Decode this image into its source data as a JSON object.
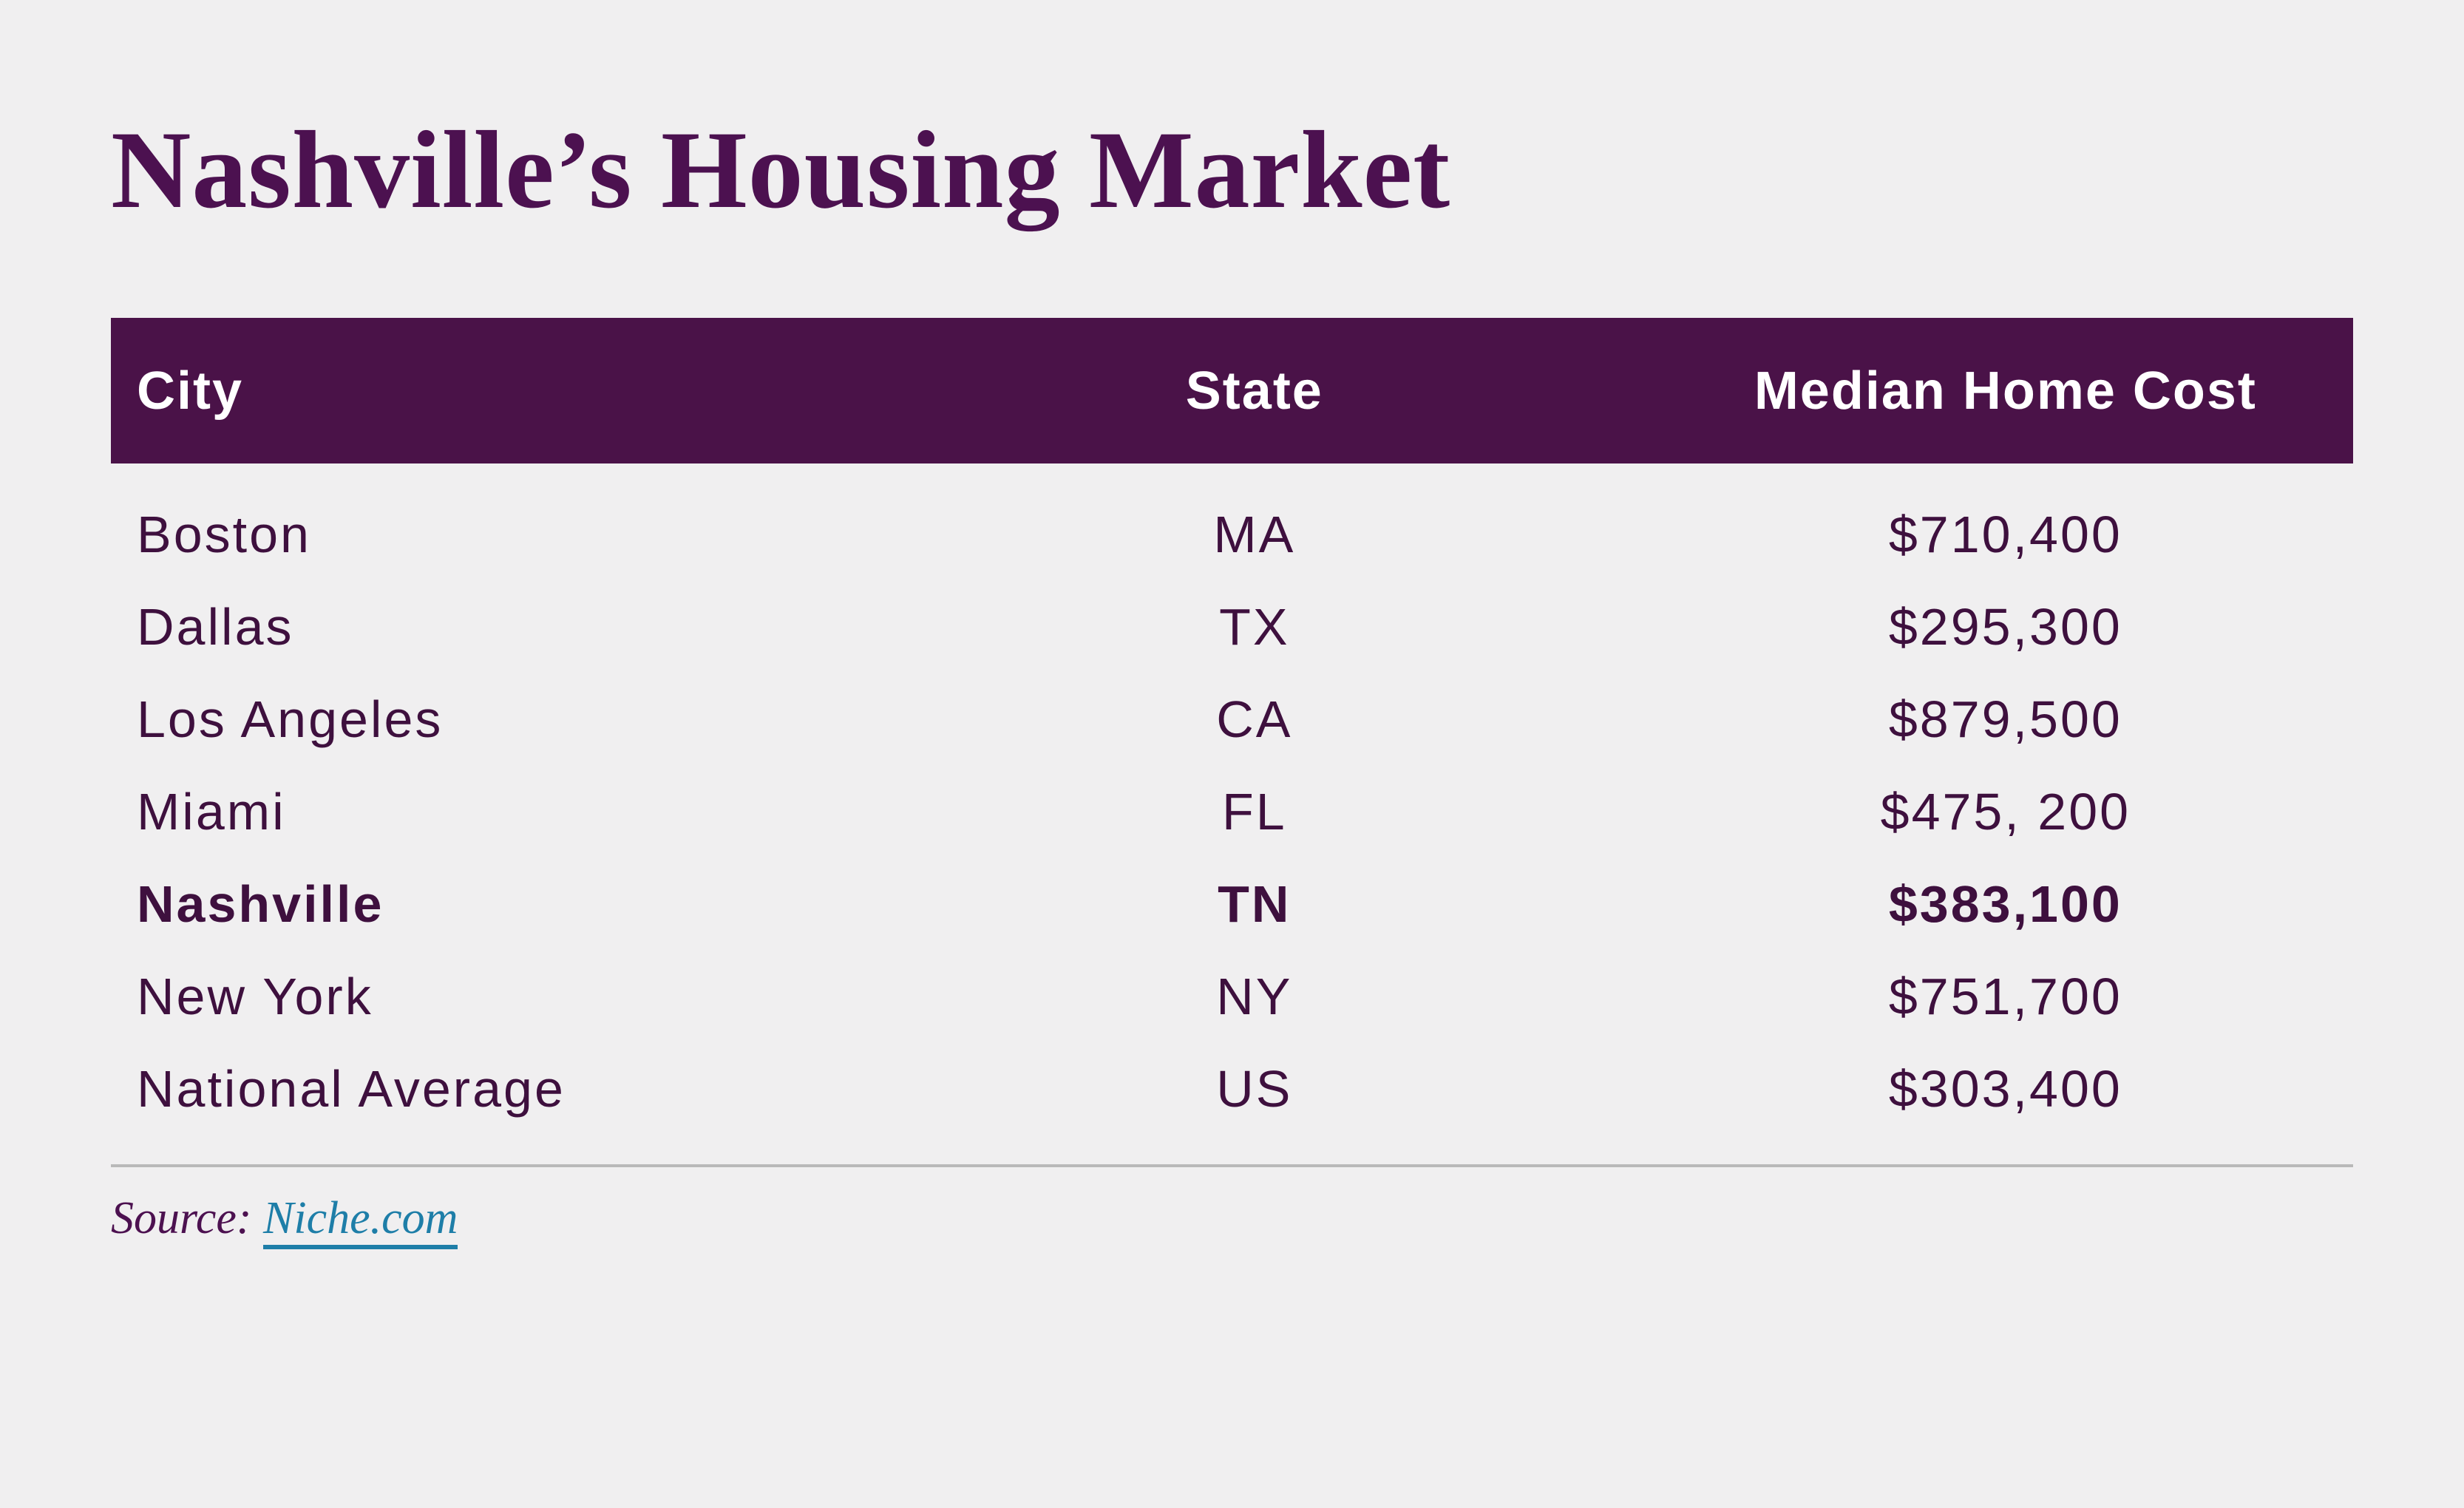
{
  "title": "Nashville’s Housing Market",
  "table": {
    "headers": {
      "city": "City",
      "state": "State",
      "cost": "Median Home Cost"
    },
    "rows": [
      {
        "city": "Boston",
        "state": "MA",
        "cost": "$710,400",
        "highlight": false
      },
      {
        "city": "Dallas",
        "state": "TX",
        "cost": "$295,300",
        "highlight": false
      },
      {
        "city": "Los Angeles",
        "state": "CA",
        "cost": "$879,500",
        "highlight": false
      },
      {
        "city": "Miami",
        "state": "FL",
        "cost": "$475, 200",
        "highlight": false
      },
      {
        "city": "Nashville",
        "state": "TN",
        "cost": "$383,100",
        "highlight": true
      },
      {
        "city": "New York",
        "state": "NY",
        "cost": "$751,700",
        "highlight": false
      },
      {
        "city": "National Average",
        "state": "US",
        "cost": "$303,400",
        "highlight": false
      }
    ]
  },
  "source": {
    "label": "Source:",
    "link_text": "Niche.com"
  },
  "colors": {
    "background": "#f0eff0",
    "header_background": "#4a1248",
    "title_text": "#4c1150",
    "row_text": "#3e103e",
    "header_text": "#ffffff",
    "divider": "#b9b9b9",
    "link": "#1e7ea8"
  }
}
